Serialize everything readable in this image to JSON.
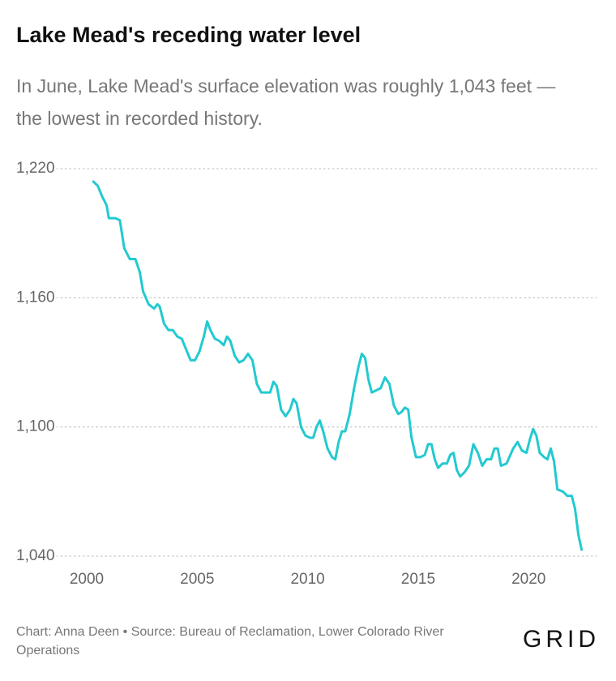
{
  "chart_data": {
    "type": "line",
    "title": "Lake Mead's receding water level",
    "subtitle": "In June, Lake Mead's surface elevation was roughly 1,043 feet — the lowest in recorded history.",
    "footer": "Chart: Anna Deen • Source: Bureau of Reclamation, Lower Colorado River Operations",
    "logo": "GRID",
    "xlim": [
      2000,
      2023
    ],
    "xticks": [
      2000,
      2005,
      2010,
      2015,
      2020
    ],
    "ylim": [
      1040,
      1220
    ],
    "yticks": [
      {
        "value": 1040,
        "label": "1,040"
      },
      {
        "value": 1100,
        "label": "1,100"
      },
      {
        "value": 1160,
        "label": "1,160"
      },
      {
        "value": 1220,
        "label": "1,220"
      }
    ],
    "grid": true,
    "series": [
      {
        "color": "#22cad0",
        "x": [
          2000.3,
          2000.5,
          2000.7,
          2000.9,
          2001.0,
          2001.3,
          2001.5,
          2001.7,
          2001.95,
          2002.2,
          2002.4,
          2002.55,
          2002.8,
          2003.05,
          2003.2,
          2003.3,
          2003.5,
          2003.7,
          2003.9,
          2004.1,
          2004.3,
          2004.5,
          2004.7,
          2004.9,
          2005.1,
          2005.3,
          2005.45,
          2005.6,
          2005.8,
          2006.0,
          2006.2,
          2006.35,
          2006.5,
          2006.7,
          2006.9,
          2007.1,
          2007.3,
          2007.5,
          2007.7,
          2007.9,
          2008.1,
          2008.3,
          2008.45,
          2008.6,
          2008.8,
          2009.0,
          2009.2,
          2009.35,
          2009.5,
          2009.7,
          2009.9,
          2010.1,
          2010.25,
          2010.4,
          2010.55,
          2010.7,
          2010.9,
          2011.1,
          2011.25,
          2011.4,
          2011.55,
          2011.7,
          2011.9,
          2012.1,
          2012.3,
          2012.45,
          2012.6,
          2012.75,
          2012.9,
          2013.1,
          2013.3,
          2013.5,
          2013.7,
          2013.9,
          2014.1,
          2014.25,
          2014.4,
          2014.55,
          2014.7,
          2014.9,
          2015.1,
          2015.3,
          2015.45,
          2015.6,
          2015.75,
          2015.9,
          2016.1,
          2016.3,
          2016.45,
          2016.6,
          2016.75,
          2016.9,
          2017.1,
          2017.3,
          2017.5,
          2017.7,
          2017.9,
          2018.1,
          2018.3,
          2018.45,
          2018.6,
          2018.75,
          2019.0,
          2019.3,
          2019.5,
          2019.7,
          2019.9,
          2020.05,
          2020.2,
          2020.35,
          2020.5,
          2020.7,
          2020.85,
          2021.0,
          2021.15,
          2021.3,
          2021.55,
          2021.75,
          2021.95,
          2022.1,
          2022.25,
          2022.4
        ],
        "values": [
          1214,
          1212,
          1207,
          1203,
          1197,
          1197,
          1196,
          1183,
          1178,
          1178,
          1172,
          1163,
          1157,
          1155,
          1157,
          1156,
          1148,
          1145,
          1145,
          1142,
          1141,
          1136,
          1131,
          1131,
          1135,
          1142,
          1149,
          1145,
          1141,
          1140,
          1138,
          1142,
          1140,
          1133,
          1130,
          1131,
          1134,
          1131,
          1120,
          1116,
          1116,
          1116,
          1121,
          1119,
          1108,
          1105,
          1108,
          1113,
          1111,
          1100,
          1096,
          1095,
          1095,
          1100,
          1103,
          1098,
          1090,
          1086,
          1085,
          1093,
          1098,
          1098,
          1106,
          1118,
          1128,
          1134,
          1132,
          1122,
          1116,
          1117,
          1118,
          1123,
          1120,
          1110,
          1106,
          1107,
          1109,
          1108,
          1095,
          1086,
          1086,
          1087,
          1092,
          1092,
          1085,
          1081,
          1083,
          1083,
          1087,
          1088,
          1080,
          1077,
          1079,
          1082,
          1092,
          1088,
          1082,
          1085,
          1085,
          1090,
          1090,
          1082,
          1083,
          1090,
          1093,
          1089,
          1088,
          1094,
          1099,
          1096,
          1088,
          1086,
          1085,
          1090,
          1084,
          1071,
          1070,
          1068,
          1068,
          1062,
          1050,
          1043
        ]
      }
    ]
  }
}
